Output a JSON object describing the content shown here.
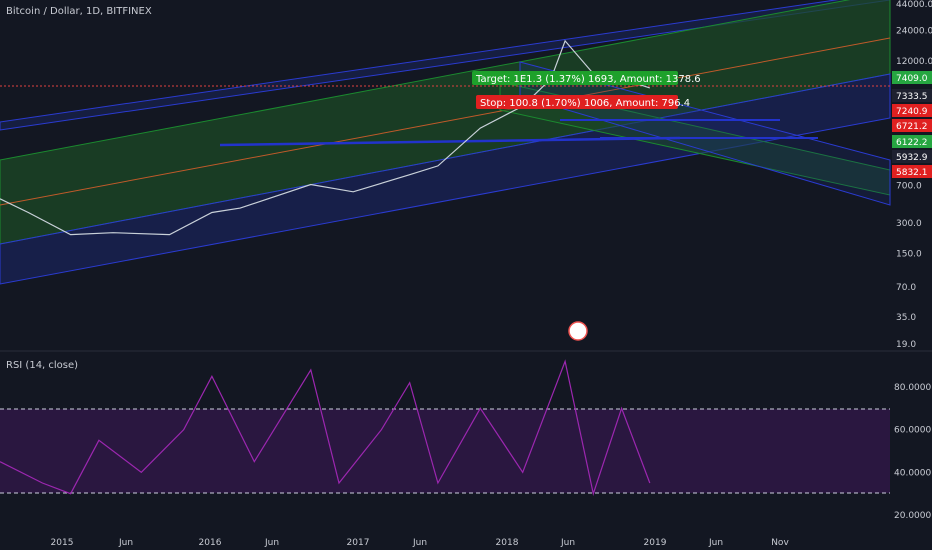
{
  "header": {
    "symbol_title": "Bitcoin / Dollar, 1D, BITFINEX"
  },
  "rsi_panel": {
    "title": "RSI (14, close)"
  },
  "chart_data": [
    {
      "type": "line",
      "name": "price",
      "scale": "log",
      "y_ticks": [
        "44000.0",
        "24000.0",
        "12000.0",
        "7409.0",
        "7333.5",
        "7240.9",
        "6721.2",
        "6122.2",
        "5932.9",
        "5832.1",
        "700.0",
        "300.0",
        "150.0",
        "70.0",
        "35.0",
        "19.0"
      ],
      "y_axis_labels": [
        {
          "text": "44000.0",
          "value": 44000
        },
        {
          "text": "24000.0",
          "value": 24000
        },
        {
          "text": "12000.0",
          "value": 12000
        },
        {
          "text": "700.0",
          "value": 700
        },
        {
          "text": "300.0",
          "value": 300
        },
        {
          "text": "150.0",
          "value": 150
        },
        {
          "text": "70.0",
          "value": 70
        },
        {
          "text": "35.0",
          "value": 35
        },
        {
          "text": "19.0",
          "value": 19
        }
      ],
      "price_badges": [
        {
          "text": "7409.0",
          "color": "#26a641"
        },
        {
          "text": "7333.5",
          "color": "#1e2130"
        },
        {
          "text": "7240.9",
          "color": "#e02020"
        },
        {
          "text": "6721.2",
          "color": "#e02020"
        },
        {
          "text": "6122.2",
          "color": "#26a641"
        },
        {
          "text": "5932.9",
          "color": "#1e2130"
        },
        {
          "text": "5832.1",
          "color": "#e02020"
        }
      ],
      "x_ticks": [
        "2015",
        "Jun",
        "2016",
        "Jun",
        "2017",
        "Jun",
        "2018",
        "Jun",
        "2019",
        "Jun",
        "Nov"
      ],
      "price_path": [
        {
          "t": "2014-08",
          "v": 520
        },
        {
          "t": "2014-10",
          "v": 380
        },
        {
          "t": "2015-01",
          "v": 230
        },
        {
          "t": "2015-04",
          "v": 240
        },
        {
          "t": "2015-08",
          "v": 230
        },
        {
          "t": "2015-11",
          "v": 380
        },
        {
          "t": "2016-01",
          "v": 420
        },
        {
          "t": "2016-06",
          "v": 720
        },
        {
          "t": "2016-09",
          "v": 610
        },
        {
          "t": "2017-01",
          "v": 900
        },
        {
          "t": "2017-03",
          "v": 1100
        },
        {
          "t": "2017-06",
          "v": 2600
        },
        {
          "t": "2017-09",
          "v": 4300
        },
        {
          "t": "2017-11",
          "v": 8000
        },
        {
          "t": "2017-12",
          "v": 19000
        },
        {
          "t": "2018-02",
          "v": 9000
        },
        {
          "t": "2018-04",
          "v": 8000
        },
        {
          "t": "2018-06",
          "v": 6500
        }
      ],
      "annotations": [
        {
          "text": "Target: 1E1.3 (1.37%) 1693, Amount: 1378.6",
          "color": "#1ea12b"
        },
        {
          "text": "Stop: 100.8 (1.70%) 1006, Amount: 796.4",
          "color": "#e02020"
        }
      ],
      "colors": {
        "up": "#26a69a",
        "down": "#ef5350",
        "channel_green": "#1b8a2f",
        "channel_blue": "#2a3bd1",
        "midline": "#c05a2a"
      }
    },
    {
      "type": "line",
      "name": "RSI",
      "y_ticks": [
        "80.0000",
        "60.0000",
        "40.0000",
        "20.0000"
      ],
      "upper_band": 70,
      "lower_band": 30,
      "color": "#9c27b0",
      "band_fill": "#2a1740",
      "rsi_path": [
        {
          "t": "2014-08",
          "v": 45
        },
        {
          "t": "2014-11",
          "v": 35
        },
        {
          "t": "2015-01",
          "v": 30
        },
        {
          "t": "2015-03",
          "v": 55
        },
        {
          "t": "2015-06",
          "v": 40
        },
        {
          "t": "2015-09",
          "v": 60
        },
        {
          "t": "2015-11",
          "v": 85
        },
        {
          "t": "2016-02",
          "v": 45
        },
        {
          "t": "2016-06",
          "v": 88
        },
        {
          "t": "2016-08",
          "v": 35
        },
        {
          "t": "2016-11",
          "v": 60
        },
        {
          "t": "2017-01",
          "v": 82
        },
        {
          "t": "2017-03",
          "v": 35
        },
        {
          "t": "2017-06",
          "v": 70
        },
        {
          "t": "2017-09",
          "v": 40
        },
        {
          "t": "2017-12",
          "v": 92
        },
        {
          "t": "2018-02",
          "v": 30
        },
        {
          "t": "2018-04",
          "v": 70
        },
        {
          "t": "2018-06",
          "v": 35
        }
      ]
    }
  ]
}
